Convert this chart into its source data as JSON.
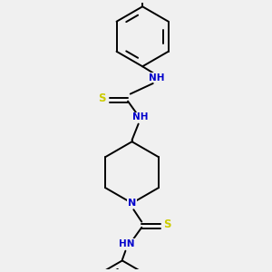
{
  "bg_color": "#f0f0f0",
  "line_color": "#000000",
  "N_color": "#0000cc",
  "S_color": "#cccc00",
  "lw": 1.4,
  "figsize": [
    3.0,
    3.0
  ],
  "dpi": 100,
  "xlim": [
    -1.5,
    1.5
  ],
  "ylim": [
    -1.6,
    1.7
  ]
}
